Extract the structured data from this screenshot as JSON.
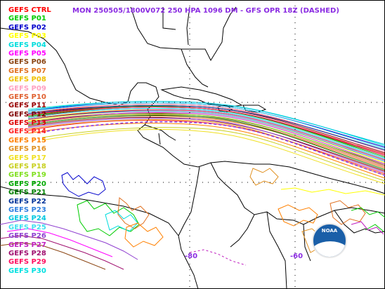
{
  "title": "MON 250505/1800V072  250 HPA 1096 DM - GFS OPR 18Z (DASHED)",
  "legend": [
    {
      "label": "GEFS CTRL",
      "color": "#ff0000"
    },
    {
      "label": "GEFS P01",
      "color": "#00cc00"
    },
    {
      "label": "GEFS P02",
      "color": "#0000cc"
    },
    {
      "label": "GEFS P03",
      "color": "#ffff00"
    },
    {
      "label": "GEFS P04",
      "color": "#00dddd"
    },
    {
      "label": "GEFS P05",
      "color": "#ff00ff"
    },
    {
      "label": "GEFS P06",
      "color": "#8b4513"
    },
    {
      "label": "GEFS P07",
      "color": "#e07020"
    },
    {
      "label": "GEFS P08",
      "color": "#f0c000"
    },
    {
      "label": "GEFS P09",
      "color": "#ffa0c0"
    },
    {
      "label": "GEFS P10",
      "color": "#e06030"
    },
    {
      "label": "GEFS P11",
      "color": "#990000"
    },
    {
      "label": "GEFS P12",
      "color": "#800000"
    },
    {
      "label": "GEFS P13",
      "color": "#dd0000"
    },
    {
      "label": "GEFS P14",
      "color": "#ff2020"
    },
    {
      "label": "GEFS P15",
      "color": "#ff8000"
    },
    {
      "label": "GEFS P16",
      "color": "#e09020"
    },
    {
      "label": "GEFS P17",
      "color": "#f0e020"
    },
    {
      "label": "GEFS P18",
      "color": "#c8d020"
    },
    {
      "label": "GEFS P19",
      "color": "#80e020"
    },
    {
      "label": "GEFS P20",
      "color": "#00aa00"
    },
    {
      "label": "GEFS P21",
      "color": "#008000"
    },
    {
      "label": "GEFS P22",
      "color": "#003399"
    },
    {
      "label": "GEFS P23",
      "color": "#3080e0"
    },
    {
      "label": "GEFS P24",
      "color": "#00c8e0"
    },
    {
      "label": "GEFS P25",
      "color": "#40e0f0"
    },
    {
      "label": "GEFS P26",
      "color": "#9040d0"
    },
    {
      "label": "GEFS P27",
      "color": "#c020c0"
    },
    {
      "label": "GEFS P28",
      "color": "#a01070"
    },
    {
      "label": "GEFS P29",
      "color": "#ff1060"
    },
    {
      "label": "GEFS P30",
      "color": "#00e0e0"
    }
  ],
  "lon_labels": [
    "-80",
    "-60"
  ],
  "logo_text": "NOAA"
}
